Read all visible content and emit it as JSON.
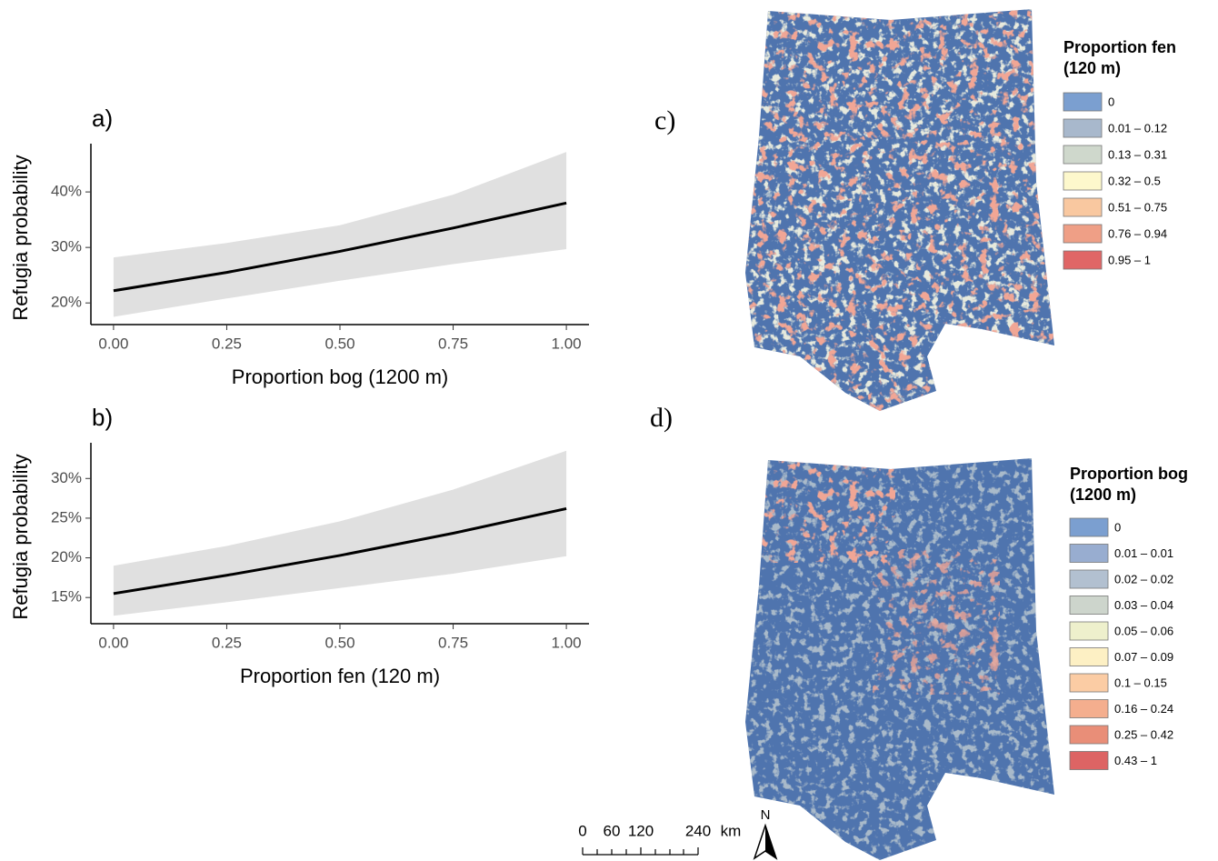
{
  "chart_data": [
    {
      "type": "line",
      "panel_label": "a)",
      "x_label": "Proportion bog (1200 m)",
      "y_label": "Refugia probability",
      "x": [
        0,
        0.25,
        0.5,
        0.75,
        1
      ],
      "values": [
        22.2,
        25.5,
        29.3,
        33.5,
        38
      ],
      "lower": [
        17.5,
        20.8,
        24.0,
        27.0,
        29.7
      ],
      "upper": [
        28.2,
        30.8,
        34.0,
        39.5,
        47.2
      ],
      "color": "#000000",
      "band_color": "#e0e0e0",
      "xlim": [
        -0.05,
        1.05
      ],
      "xticks": [
        {
          "value": 0,
          "label": "0.00"
        },
        {
          "value": 0.25,
          "label": "0.25"
        },
        {
          "value": 0.5,
          "label": "0.50"
        },
        {
          "value": 0.75,
          "label": "0.75"
        },
        {
          "value": 1,
          "label": "1.00"
        }
      ],
      "ylim": [
        16.1,
        48.7
      ],
      "yticks": [
        {
          "value": 20,
          "label": "20%"
        },
        {
          "value": 30,
          "label": "30%"
        },
        {
          "value": 40,
          "label": "40%"
        }
      ]
    },
    {
      "type": "line",
      "panel_label": "b)",
      "x_label": "Proportion fen (120 m)",
      "y_label": "Refugia probability",
      "x": [
        0,
        0.25,
        0.5,
        0.75,
        1
      ],
      "values": [
        15.5,
        17.8,
        20.3,
        23.1,
        26.2
      ],
      "lower": [
        12.7,
        14.4,
        16.2,
        18.0,
        20.2
      ],
      "upper": [
        19.0,
        21.5,
        24.6,
        28.6,
        33.5
      ],
      "color": "#000000",
      "band_color": "#e0e0e0",
      "xlim": [
        -0.05,
        1.05
      ],
      "xticks": [
        {
          "value": 0,
          "label": "0.00"
        },
        {
          "value": 0.25,
          "label": "0.25"
        },
        {
          "value": 0.5,
          "label": "0.50"
        },
        {
          "value": 0.75,
          "label": "0.75"
        },
        {
          "value": 1,
          "label": "1.00"
        }
      ],
      "ylim": [
        11.7,
        34.5
      ],
      "yticks": [
        {
          "value": 15,
          "label": "15%"
        },
        {
          "value": 20,
          "label": "20%"
        },
        {
          "value": 25,
          "label": "25%"
        },
        {
          "value": 30,
          "label": "30%"
        }
      ]
    }
  ],
  "maps": [
    {
      "panel_label": "c)",
      "legend_title": [
        "Proportion fen",
        "(120 m)"
      ],
      "legend": [
        {
          "label": "0",
          "color": "#7b9fd0"
        },
        {
          "label": "0.01 – 0.12",
          "color": "#a8b8cc"
        },
        {
          "label": "0.13 – 0.31",
          "color": "#cfd8cc"
        },
        {
          "label": "0.32 – 0.5",
          "color": "#fdf8cc"
        },
        {
          "label": "0.51 – 0.75",
          "color": "#f9c8a0"
        },
        {
          "label": "0.76 – 0.94",
          "color": "#ef9f86"
        },
        {
          "label": "0.95 – 1",
          "color": "#e06666"
        }
      ]
    },
    {
      "panel_label": "d)",
      "legend_title": [
        "Proportion bog",
        "(1200 m)"
      ],
      "legend": [
        {
          "label": "0",
          "color": "#7b9fd0"
        },
        {
          "label": "0.01 – 0.01",
          "color": "#98add0"
        },
        {
          "label": "0.02 – 0.02",
          "color": "#b2c0d0"
        },
        {
          "label": "0.03 – 0.04",
          "color": "#cdd5cc"
        },
        {
          "label": "0.05 – 0.06",
          "color": "#eef0cc"
        },
        {
          "label": "0.07 – 0.09",
          "color": "#fdf0c4"
        },
        {
          "label": "0.1 – 0.15",
          "color": "#fbcca4"
        },
        {
          "label": "0.16 – 0.24",
          "color": "#f4ae8e"
        },
        {
          "label": "0.25 – 0.42",
          "color": "#e98e78"
        },
        {
          "label": "0.43 – 1",
          "color": "#dd6464"
        }
      ]
    }
  ],
  "scale_bar": {
    "labels": [
      "0",
      "60",
      "120",
      "240"
    ],
    "unit": "km"
  },
  "north": "N"
}
